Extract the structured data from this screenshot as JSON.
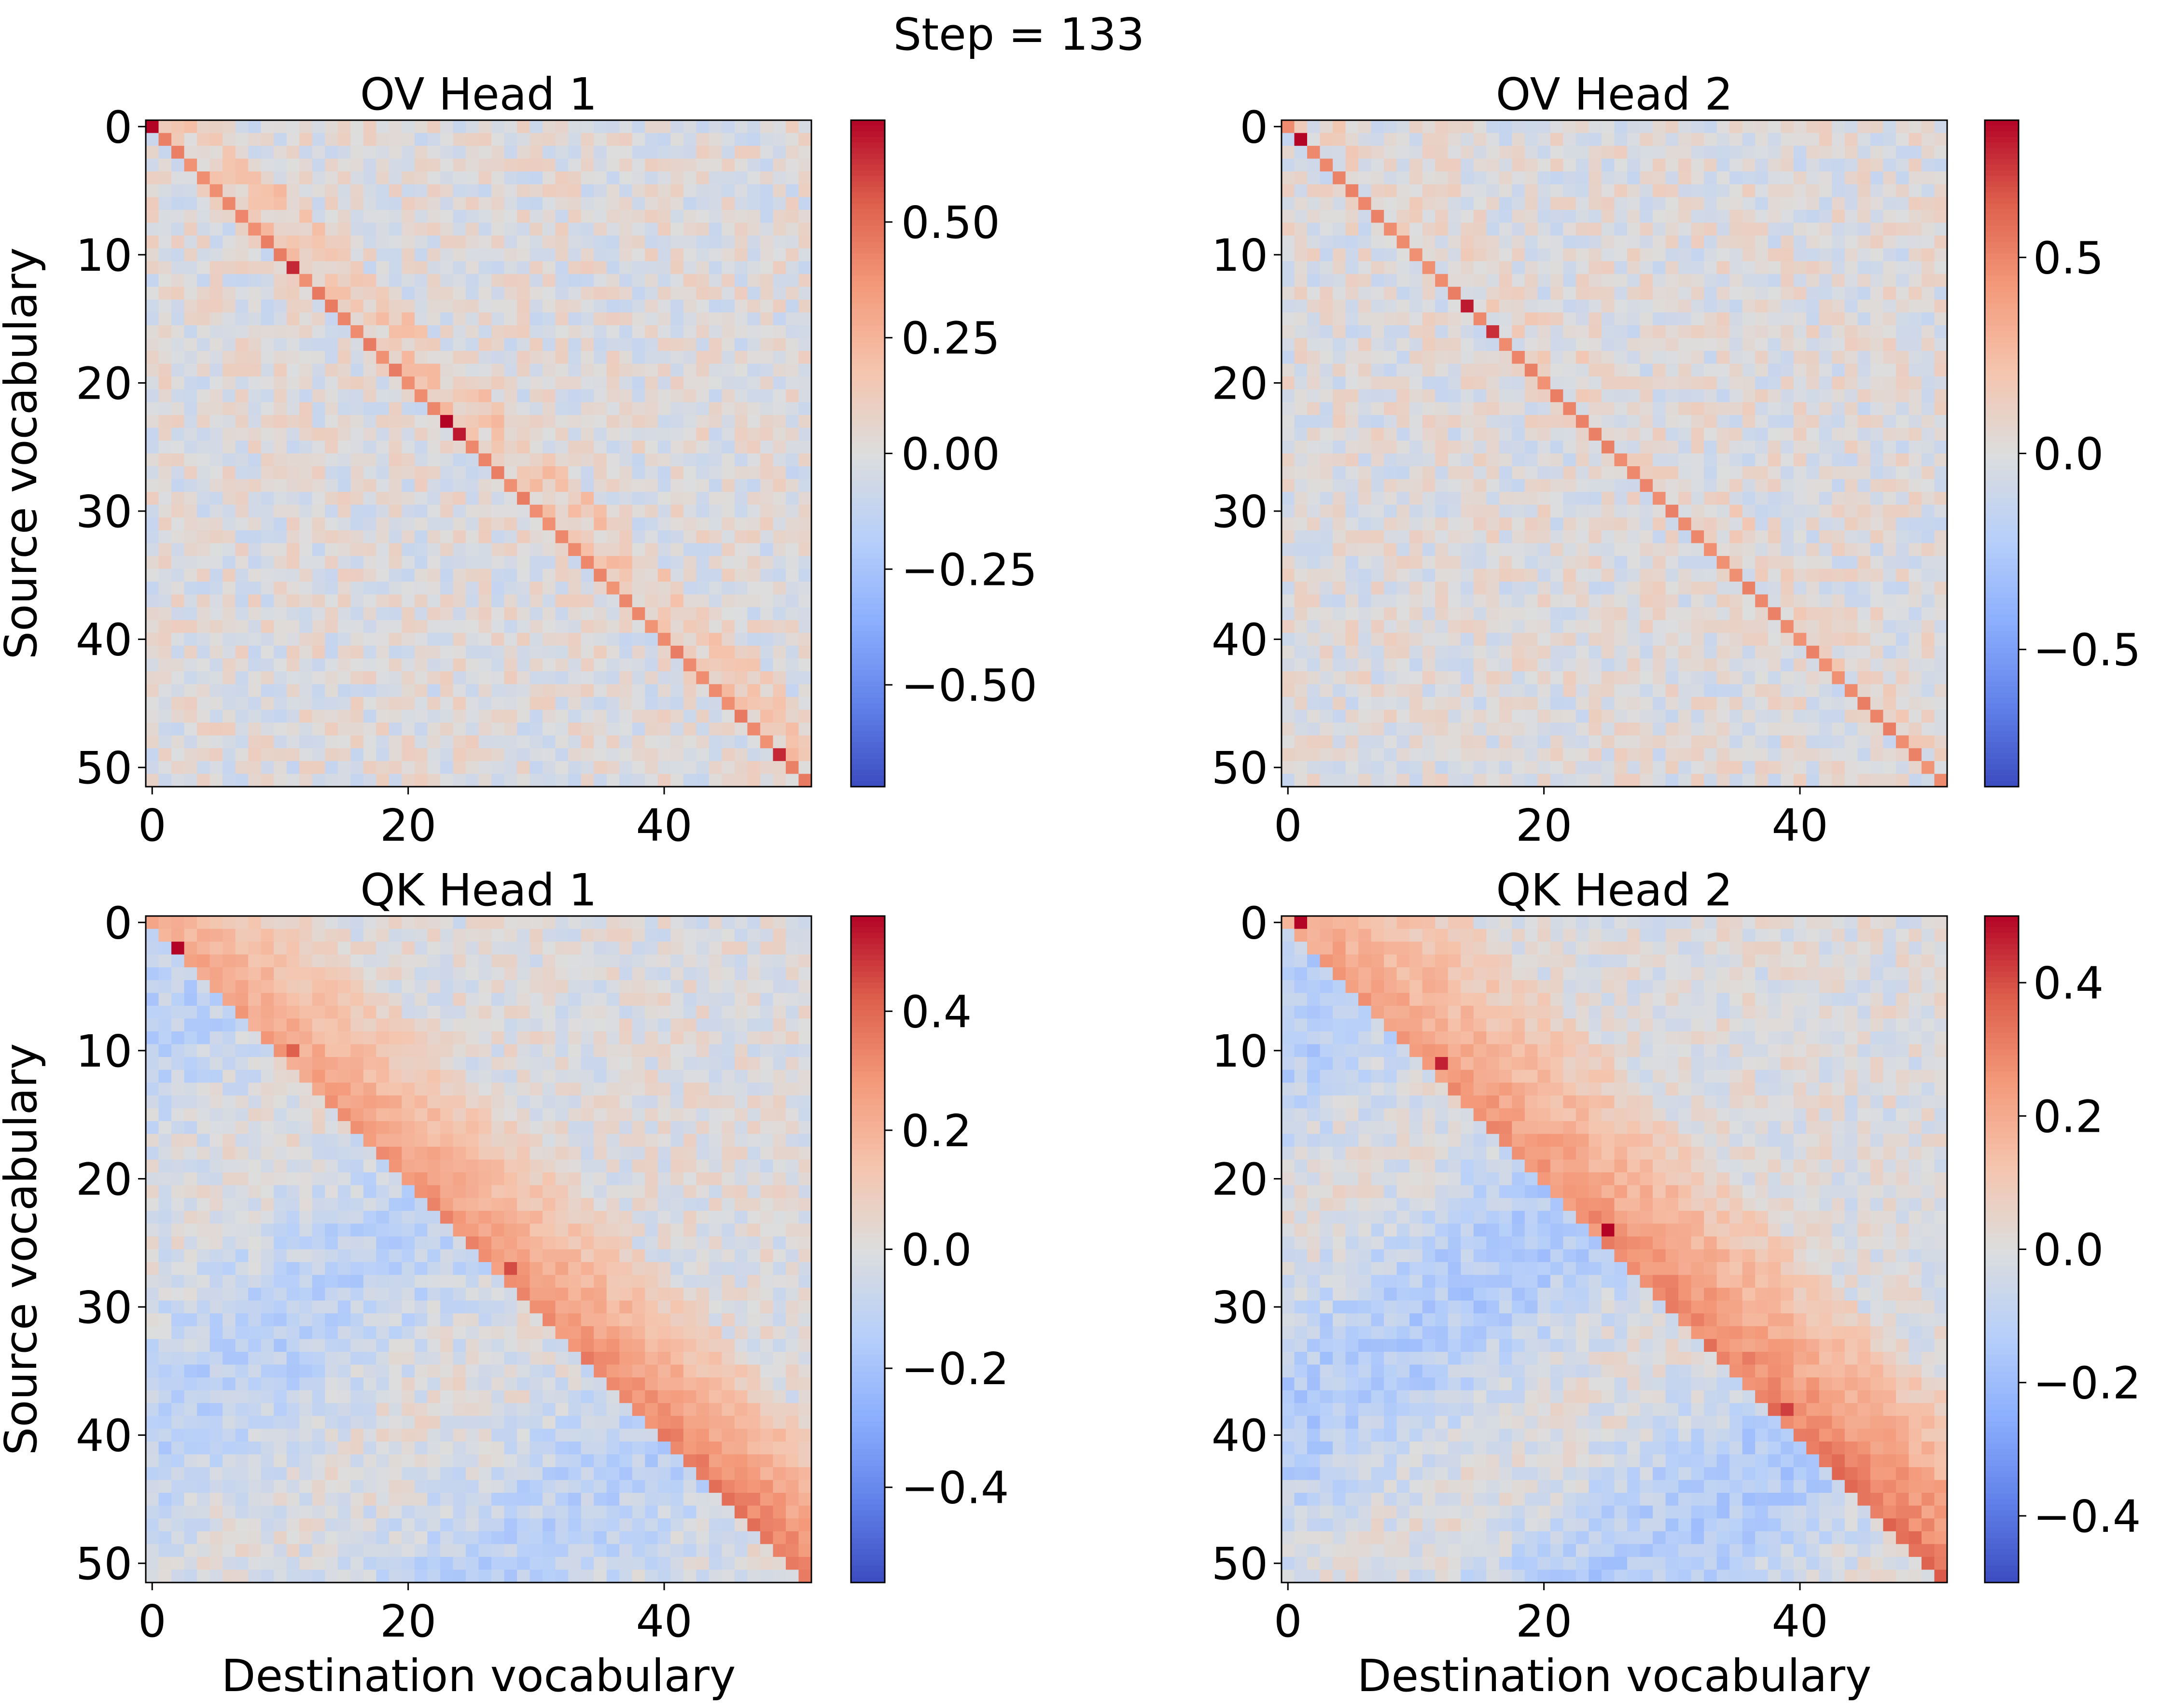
{
  "figure": {
    "suptitle": "Step = 133"
  },
  "chart_data": [
    {
      "type": "heatmap",
      "title": "OV Head 1",
      "xlabel": "",
      "ylabel": "Source vocabulary",
      "size": 52,
      "x_ticks": [
        0,
        20,
        40
      ],
      "y_ticks": [
        0,
        10,
        20,
        30,
        40,
        50
      ],
      "colormap": "coolwarm",
      "vmin": -0.72,
      "vmax": 0.72,
      "colorbar_ticks": [
        0.5,
        0.25,
        0.0,
        -0.25,
        -0.5
      ],
      "colorbar_labels": [
        "0.50",
        "0.25",
        "0.00",
        "−0.25",
        "−0.50"
      ],
      "pattern": "diagonal",
      "diagonal_strength": 0.38,
      "near_diagonal_strength": 0.12,
      "off_diagonal_noise": 0.12,
      "hot_cells": [
        [
          0,
          0,
          0.72
        ],
        [
          11,
          11,
          0.65
        ],
        [
          23,
          23,
          0.72
        ],
        [
          24,
          24,
          0.68
        ],
        [
          49,
          49,
          0.65
        ]
      ]
    },
    {
      "type": "heatmap",
      "title": "OV Head 2",
      "xlabel": "",
      "ylabel": "",
      "size": 52,
      "x_ticks": [
        0,
        20,
        40
      ],
      "y_ticks": [
        0,
        10,
        20,
        30,
        40,
        50
      ],
      "colormap": "coolwarm",
      "vmin": -0.85,
      "vmax": 0.85,
      "colorbar_ticks": [
        0.5,
        0.0,
        -0.5
      ],
      "colorbar_labels": [
        "0.5",
        "0.0",
        "−0.5"
      ],
      "pattern": "diagonal",
      "diagonal_strength": 0.45,
      "near_diagonal_strength": 0.05,
      "off_diagonal_noise": 0.14,
      "hot_cells": [
        [
          1,
          1,
          0.85
        ],
        [
          14,
          14,
          0.8
        ],
        [
          16,
          16,
          0.75
        ]
      ]
    },
    {
      "type": "heatmap",
      "title": "QK Head 1",
      "xlabel": "Destination vocabulary",
      "ylabel": "Source vocabulary",
      "size": 52,
      "x_ticks": [
        0,
        20,
        40
      ],
      "y_ticks": [
        0,
        10,
        20,
        30,
        40,
        50
      ],
      "colormap": "coolwarm",
      "vmin": -0.56,
      "vmax": 0.56,
      "colorbar_ticks": [
        0.4,
        0.2,
        0.0,
        -0.2,
        -0.4
      ],
      "colorbar_labels": [
        "0.4",
        "0.2",
        "0.0",
        "−0.2",
        "−0.4"
      ],
      "pattern": "upper_band",
      "band_width": 12,
      "band_strength": 0.32,
      "lower_strength": -0.12,
      "off_diagonal_noise": 0.08,
      "hot_cells": [
        [
          2,
          2,
          0.56
        ],
        [
          10,
          11,
          0.42
        ],
        [
          27,
          28,
          0.45
        ]
      ]
    },
    {
      "type": "heatmap",
      "title": "QK Head 2",
      "xlabel": "Destination vocabulary",
      "ylabel": "",
      "size": 52,
      "x_ticks": [
        0,
        20,
        40
      ],
      "y_ticks": [
        0,
        10,
        20,
        30,
        40,
        50
      ],
      "colormap": "coolwarm",
      "vmin": -0.5,
      "vmax": 0.5,
      "colorbar_ticks": [
        0.4,
        0.2,
        0.0,
        -0.2,
        -0.4
      ],
      "colorbar_labels": [
        "0.4",
        "0.2",
        "0.0",
        "−0.2",
        "−0.4"
      ],
      "pattern": "upper_band",
      "band_width": 14,
      "band_strength": 0.3,
      "lower_strength": -0.14,
      "off_diagonal_noise": 0.07,
      "hot_cells": [
        [
          0,
          1,
          0.5
        ],
        [
          11,
          12,
          0.46
        ],
        [
          24,
          25,
          0.5
        ],
        [
          38,
          39,
          0.42
        ]
      ]
    }
  ]
}
